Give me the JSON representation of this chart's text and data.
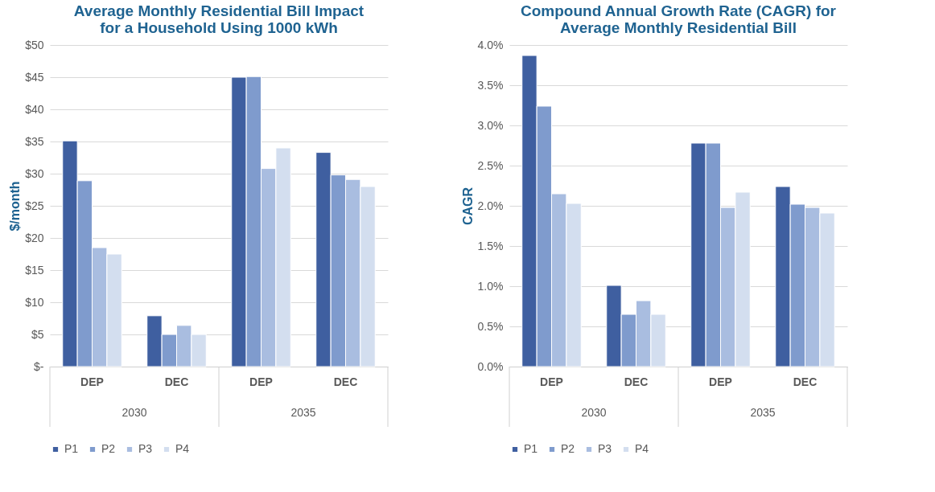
{
  "chart_data": [
    {
      "type": "bar",
      "title": "Average Monthly Residential Bill Impact for a Household Using 1000 kWh",
      "ylabel": "$/month",
      "categories": [
        "DEP",
        "DEC",
        "DEP",
        "DEC"
      ],
      "annotations": [
        "2030",
        "2035"
      ],
      "series": [
        {
          "name": "P1",
          "color": "#3f5fa0",
          "values": [
            35.1,
            7.9,
            45.0,
            33.3
          ]
        },
        {
          "name": "P2",
          "color": "#7f9bcd",
          "values": [
            28.9,
            5.0,
            45.1,
            29.8
          ]
        },
        {
          "name": "P3",
          "color": "#a9bde0",
          "values": [
            18.5,
            6.4,
            30.8,
            29.1
          ]
        },
        {
          "name": "P4",
          "color": "#d3deef",
          "values": [
            17.5,
            5.0,
            34.0,
            28.0
          ]
        }
      ],
      "ylim": [
        0,
        50
      ],
      "yticks": [
        {
          "value": 0,
          "label": "$-"
        },
        {
          "value": 5,
          "label": "$5"
        },
        {
          "value": 10,
          "label": "$10"
        },
        {
          "value": 15,
          "label": "$15"
        },
        {
          "value": 20,
          "label": "$20"
        },
        {
          "value": 25,
          "label": "$25"
        },
        {
          "value": 30,
          "label": "$30"
        },
        {
          "value": 35,
          "label": "$35"
        },
        {
          "value": 40,
          "label": "$40"
        },
        {
          "value": 45,
          "label": "$45"
        },
        {
          "value": 50,
          "label": "$50"
        }
      ],
      "grid": "y",
      "legend": "bottom"
    },
    {
      "type": "bar",
      "title": "Compound Annual Growth Rate (CAGR) for Average Monthly Residential Bill",
      "ylabel": "CAGR",
      "categories": [
        "DEP",
        "DEC",
        "DEP",
        "DEC"
      ],
      "annotations": [
        "2030",
        "2035"
      ],
      "series": [
        {
          "name": "P1",
          "color": "#3f5fa0",
          "values": [
            3.87,
            1.01,
            2.78,
            2.24
          ]
        },
        {
          "name": "P2",
          "color": "#7f9bcd",
          "values": [
            3.24,
            0.65,
            2.78,
            2.02
          ]
        },
        {
          "name": "P3",
          "color": "#a9bde0",
          "values": [
            2.15,
            0.82,
            1.98,
            1.98
          ]
        },
        {
          "name": "P4",
          "color": "#d3deef",
          "values": [
            2.03,
            0.65,
            2.17,
            1.91
          ]
        }
      ],
      "ylim": [
        0,
        4
      ],
      "yticks": [
        {
          "value": 0,
          "label": "0.0%"
        },
        {
          "value": 0.5,
          "label": "0.5%"
        },
        {
          "value": 1,
          "label": "1.0%"
        },
        {
          "value": 1.5,
          "label": "1.5%"
        },
        {
          "value": 2,
          "label": "2.0%"
        },
        {
          "value": 2.5,
          "label": "2.5%"
        },
        {
          "value": 3,
          "label": "3.0%"
        },
        {
          "value": 3.5,
          "label": "3.5%"
        },
        {
          "value": 4,
          "label": "4.0%"
        }
      ],
      "grid": "y",
      "legend": "bottom"
    }
  ]
}
